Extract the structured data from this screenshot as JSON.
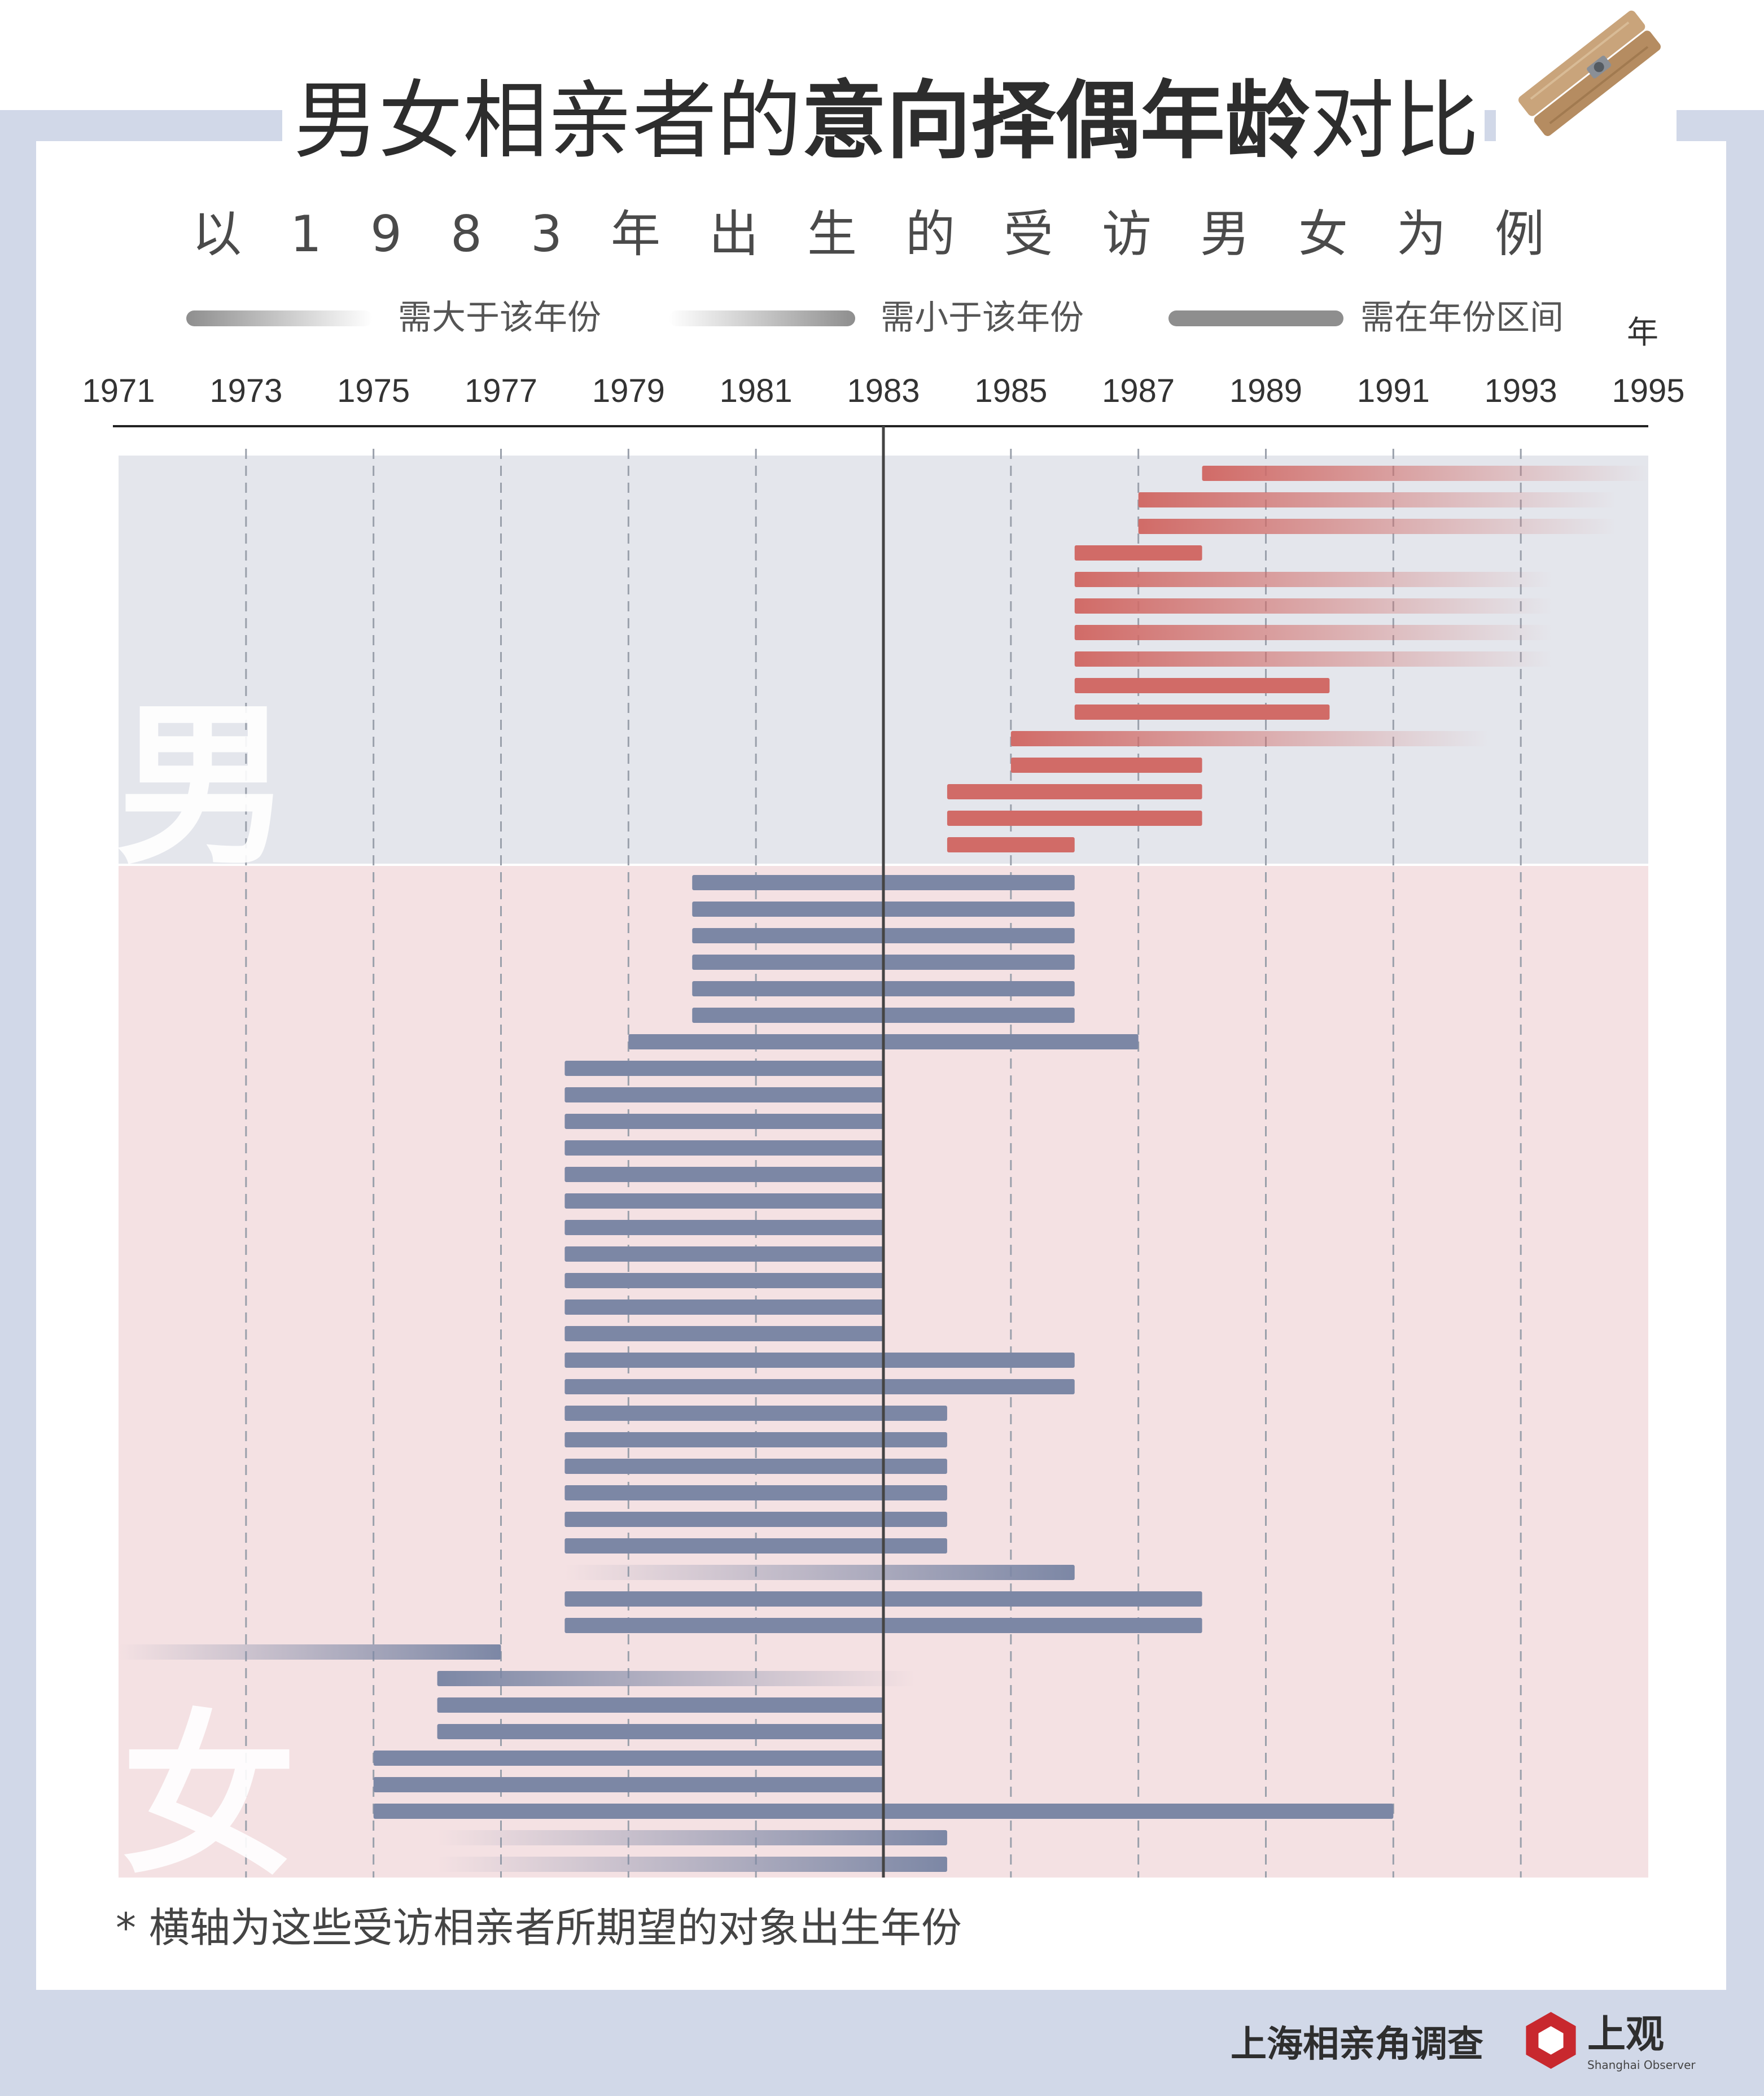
{
  "header": {
    "title_part1": "男女相亲者的",
    "title_bold": "意向择偶年龄",
    "title_part2": "对比",
    "subtitle": "以1983年出生的受访男女为例"
  },
  "legend": {
    "above": "需大于该年份",
    "below": "需小于该年份",
    "range": "需在年份区间"
  },
  "colors": {
    "male_bar": "#d16b67",
    "female_bar": "#7c87a5",
    "male_band": "#e4e6ec",
    "female_band": "#f4e1e3",
    "frame": "#d1d8e8",
    "legend_bar": "#8e8e8e"
  },
  "chart_data": {
    "type": "bar",
    "orientation": "horizontal",
    "x_unit": "年",
    "xlim": [
      1971,
      1995
    ],
    "x_ticks": [
      1971,
      1973,
      1975,
      1977,
      1979,
      1981,
      1983,
      1985,
      1987,
      1989,
      1991,
      1993,
      1995
    ],
    "reference_year": 1983,
    "groups": [
      {
        "name": "男",
        "bars": [
          {
            "from": 1988,
            "to": null,
            "type": "above"
          },
          {
            "from": 1987,
            "to": null,
            "type": "above"
          },
          {
            "from": 1987,
            "to": null,
            "type": "above"
          },
          {
            "from": 1986,
            "to": 1988,
            "type": "range"
          },
          {
            "from": 1986,
            "to": null,
            "type": "above"
          },
          {
            "from": 1986,
            "to": null,
            "type": "above"
          },
          {
            "from": 1986,
            "to": null,
            "type": "above"
          },
          {
            "from": 1986,
            "to": null,
            "type": "above"
          },
          {
            "from": 1986,
            "to": 1990,
            "type": "range"
          },
          {
            "from": 1986,
            "to": 1990,
            "type": "range"
          },
          {
            "from": 1985,
            "to": null,
            "type": "above"
          },
          {
            "from": 1985,
            "to": 1988,
            "type": "range"
          },
          {
            "from": 1984,
            "to": 1988,
            "type": "range"
          },
          {
            "from": 1984,
            "to": 1988,
            "type": "range"
          },
          {
            "from": 1984,
            "to": 1986,
            "type": "range"
          }
        ]
      },
      {
        "name": "女",
        "bars": [
          {
            "from": 1980,
            "to": 1986,
            "type": "range"
          },
          {
            "from": 1980,
            "to": 1986,
            "type": "range"
          },
          {
            "from": 1980,
            "to": 1986,
            "type": "range"
          },
          {
            "from": 1980,
            "to": 1986,
            "type": "range"
          },
          {
            "from": 1980,
            "to": 1986,
            "type": "range"
          },
          {
            "from": 1980,
            "to": 1986,
            "type": "range"
          },
          {
            "from": 1979,
            "to": 1987,
            "type": "range"
          },
          {
            "from": 1978,
            "to": 1983,
            "type": "range"
          },
          {
            "from": 1978,
            "to": 1983,
            "type": "range"
          },
          {
            "from": 1978,
            "to": 1983,
            "type": "range"
          },
          {
            "from": 1978,
            "to": 1983,
            "type": "range"
          },
          {
            "from": 1978,
            "to": 1983,
            "type": "range"
          },
          {
            "from": 1978,
            "to": 1983,
            "type": "range"
          },
          {
            "from": 1978,
            "to": 1983,
            "type": "range"
          },
          {
            "from": 1978,
            "to": 1983,
            "type": "range"
          },
          {
            "from": 1978,
            "to": 1983,
            "type": "range"
          },
          {
            "from": 1978,
            "to": 1983,
            "type": "range"
          },
          {
            "from": 1978,
            "to": 1983,
            "type": "range"
          },
          {
            "from": 1978,
            "to": 1986,
            "type": "range"
          },
          {
            "from": 1978,
            "to": 1986,
            "type": "range"
          },
          {
            "from": 1978,
            "to": 1984,
            "type": "range"
          },
          {
            "from": 1978,
            "to": 1984,
            "type": "range"
          },
          {
            "from": 1978,
            "to": 1984,
            "type": "range"
          },
          {
            "from": 1978,
            "to": 1984,
            "type": "range"
          },
          {
            "from": 1978,
            "to": 1984,
            "type": "range"
          },
          {
            "from": 1978,
            "to": 1984,
            "type": "range"
          },
          {
            "from": null,
            "to": 1986,
            "type": "below"
          },
          {
            "from": 1978,
            "to": 1988,
            "type": "range"
          },
          {
            "from": 1978,
            "to": 1988,
            "type": "range"
          },
          {
            "from": null,
            "to": 1977,
            "type": "below"
          },
          {
            "from": 1976,
            "to": null,
            "type": "above"
          },
          {
            "from": 1976,
            "to": 1983,
            "type": "range"
          },
          {
            "from": 1976,
            "to": 1983,
            "type": "range"
          },
          {
            "from": 1975,
            "to": 1983,
            "type": "range"
          },
          {
            "from": 1975,
            "to": 1983,
            "type": "range"
          },
          {
            "from": 1975,
            "to": 1991,
            "type": "range"
          },
          {
            "from": null,
            "to": 1984,
            "type": "below"
          },
          {
            "from": null,
            "to": 1984,
            "type": "below"
          }
        ]
      }
    ]
  },
  "footnote": "* 横轴为这些受访相亲者所期望的对象出生年份",
  "footer": {
    "source": "上海相亲角调查",
    "brand_cn": "上观",
    "brand_en": "Shanghai Observer"
  }
}
